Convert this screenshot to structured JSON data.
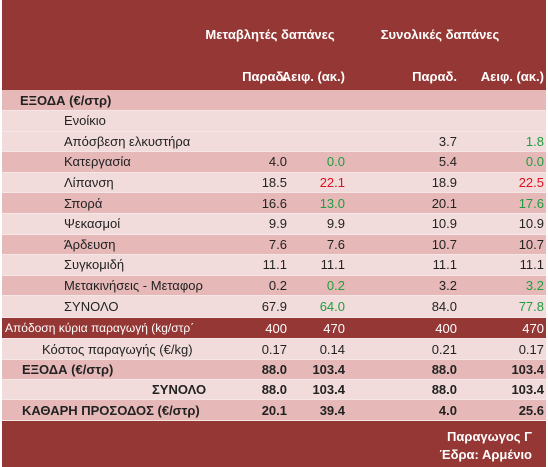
{
  "header": {
    "groups": [
      "Μεταβλητές δαπάνες",
      "Συνολικές δαπάνες"
    ],
    "columns": [
      "Παραδ.",
      "Αειφ. (ακ.)",
      "Παραδ.",
      "Αειφ. (ακ.)"
    ]
  },
  "table": {
    "rows": [
      {
        "label": "ΕΞΟΔΑ (€/στρ)",
        "cells": [
          null,
          null,
          null,
          null
        ]
      },
      {
        "label": "Ενοίκιο",
        "cells": [
          null,
          null,
          null,
          null
        ]
      },
      {
        "label": "Απόσβεση ελκυστήρα",
        "cells": [
          null,
          null,
          "3.7",
          "1.8"
        ],
        "colors": [
          null,
          null,
          null,
          "#1e9e3e"
        ]
      },
      {
        "label": "Κατεργασία",
        "cells": [
          "4.0",
          "0.0",
          "5.4",
          "0.0"
        ],
        "colors": [
          null,
          "#1e9e3e",
          null,
          "#1e9e3e"
        ]
      },
      {
        "label": "Λίπανση",
        "cells": [
          "18.5",
          "22.1",
          "18.9",
          "22.5"
        ],
        "colors": [
          null,
          "#e0101e",
          null,
          "#e0101e"
        ]
      },
      {
        "label": "Σπορά",
        "cells": [
          "16.6",
          "13.0",
          "20.1",
          "17.6"
        ],
        "colors": [
          null,
          "#1e9e3e",
          null,
          "#1e9e3e"
        ]
      },
      {
        "label": "Ψεκασμοί",
        "cells": [
          "9.9",
          "9.9",
          "10.9",
          "10.9"
        ]
      },
      {
        "label": "Άρδευση",
        "cells": [
          "7.6",
          "7.6",
          "10.7",
          "10.7"
        ]
      },
      {
        "label": "Συγκομιδή",
        "cells": [
          "11.1",
          "11.1",
          "11.1",
          "11.1"
        ]
      },
      {
        "label": "Μετακινήσεις - Μεταφορ",
        "cells": [
          "0.2",
          "0.2",
          "3.2",
          "3.2"
        ],
        "colors": [
          null,
          "#1e9e3e",
          null,
          "#1e9e3e"
        ]
      },
      {
        "label": "ΣΥΝΟΛΟ",
        "cells": [
          "67.9",
          "64.0",
          "84.0",
          "77.8"
        ],
        "colors": [
          null,
          "#1e9e3e",
          null,
          "#1e9e3e"
        ]
      },
      {
        "label": "Απόδοση κύρια παραγωγή (kg/στρ΄",
        "cells": [
          "400",
          "470",
          "400",
          "470"
        ]
      },
      {
        "label": "Κόστος παραγωγής (€/kg)",
        "cells": [
          "0.17",
          "0.14",
          "0.21",
          "0.17"
        ]
      },
      {
        "label": "ΕΞΟΔΑ (€/στρ)",
        "cells": [
          "88.0",
          "103.4",
          "88.0",
          "103.4"
        ]
      },
      {
        "label": "ΣΥΝΟΛΟ",
        "cells": [
          "88.0",
          "103.4",
          "88.0",
          "103.4"
        ]
      },
      {
        "label": "ΚΑΘΑΡΗ ΠΡΟΣΟΔΟΣ (€/στρ)",
        "cells": [
          "20.1",
          "39.4",
          "4.0",
          "25.6"
        ]
      }
    ]
  },
  "footer": {
    "lines": [
      "Παραγωγος Γ",
      "Έδρα:  Αρμένιο"
    ]
  }
}
